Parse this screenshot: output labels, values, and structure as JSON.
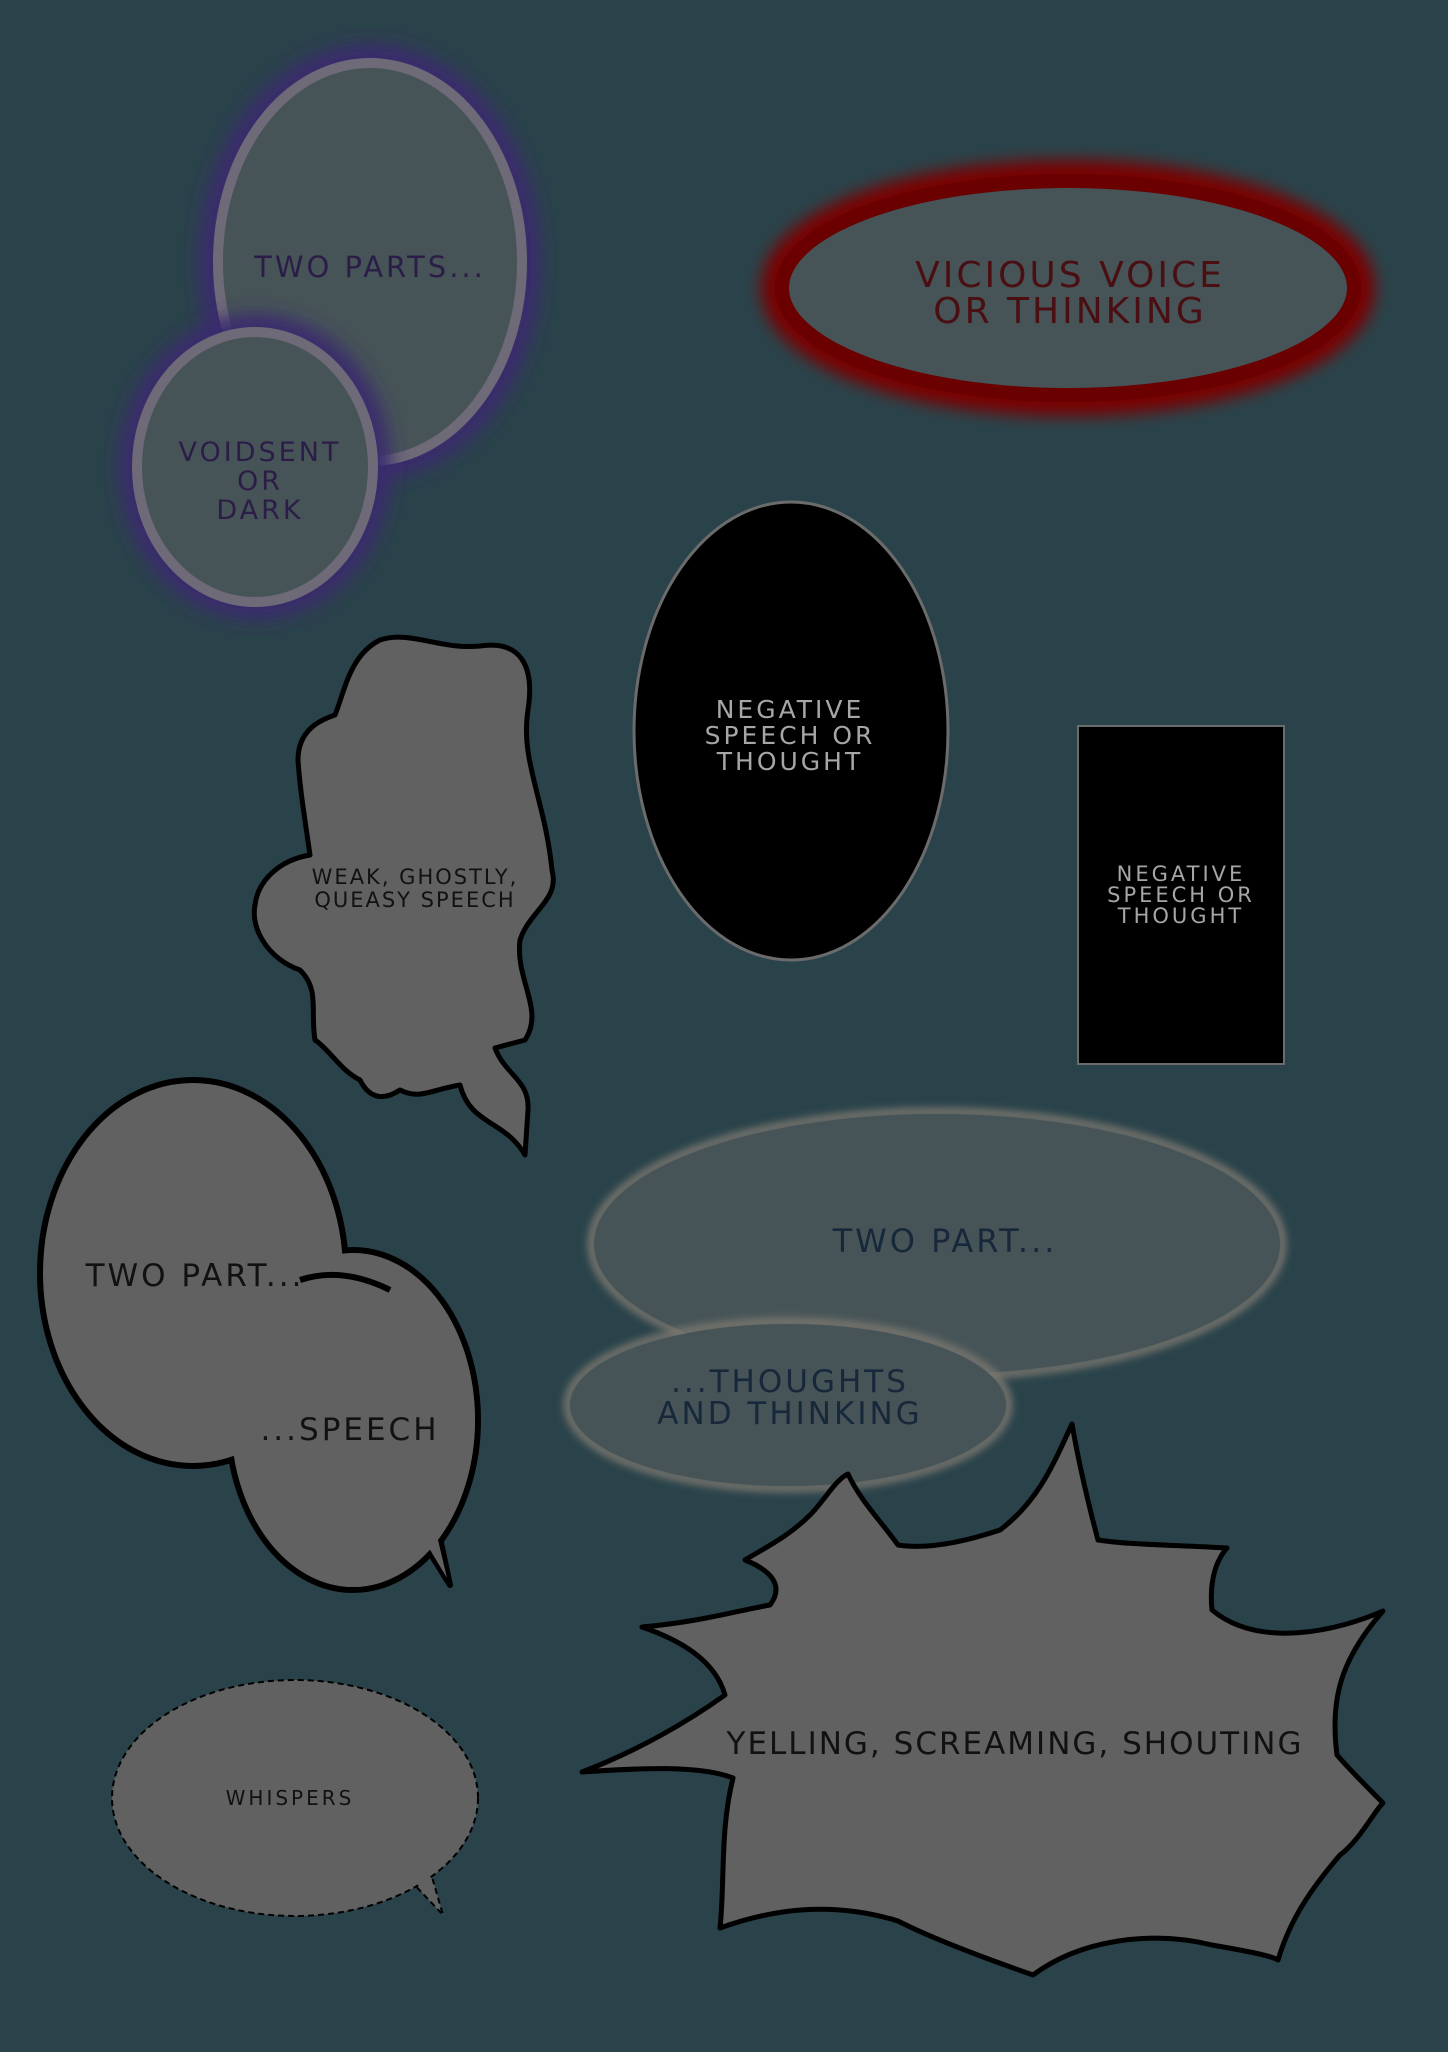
{
  "bubbles": {
    "two_parts_voidsent": {
      "top": "TWO PARTS...",
      "bottom": "VOIDSENT\nOR\nDARK"
    },
    "vicious": "VICIOUS VOICE\nOR THINKING",
    "negative_oval": "NEGATIVE\nSPEECH OR\nTHOUGHT",
    "negative_box": "NEGATIVE\nSPEECH OR\nTHOUGHT",
    "weak": "WEAK, GHOSTLY,\nQUEASY SPEECH",
    "two_part_speech": {
      "top": "TWO PART...",
      "bottom": "...SPEECH"
    },
    "two_part_thoughts": {
      "top": "TWO PART...",
      "bottom": "...THOUGHTS\nAND THINKING"
    },
    "yelling": "YELLING, SCREAMING, SHOUTING",
    "whispers": "WHISPERS"
  },
  "colors": {
    "background": "#2a434a",
    "bubble_fill": "#616161",
    "ghost_fill": "#465457",
    "void_glow": "#3a2a6e",
    "vicious_ring": "#7a0000",
    "negative_fill": "#000000"
  }
}
